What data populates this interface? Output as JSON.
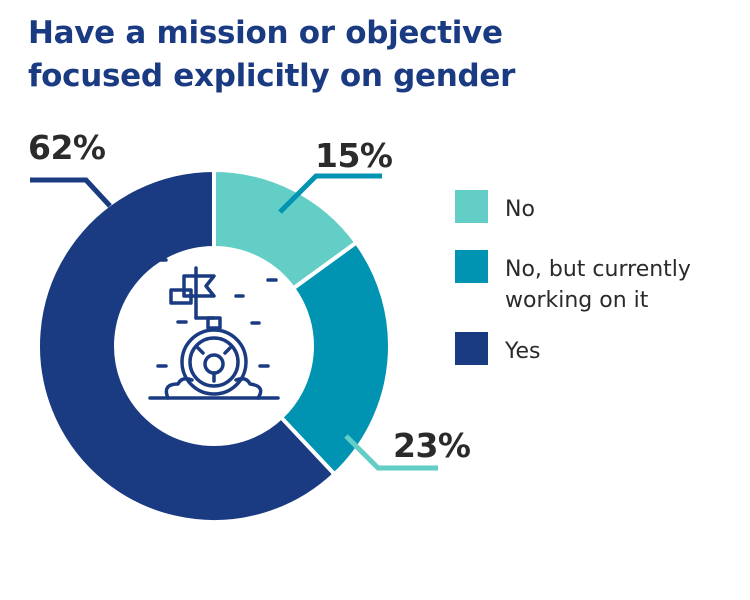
{
  "title_lines": [
    "Have a mission or objective",
    "focused explicitly on gender"
  ],
  "chart_data": {
    "type": "donut",
    "title": "Have a mission or objective focused explicitly on gender",
    "categories": [
      "No",
      "No, but currently working on it",
      "Yes"
    ],
    "values": [
      15,
      23,
      62
    ],
    "value_labels": [
      "15%",
      "23%",
      "62%"
    ],
    "colors": [
      "#62cec6",
      "#0093b2",
      "#1a3b82"
    ],
    "legend_position": "right",
    "center_icon": "flag-target-gender-icon"
  },
  "legend": [
    {
      "lines": [
        "No"
      ]
    },
    {
      "lines": [
        "No, but currently",
        "working on it"
      ]
    },
    {
      "lines": [
        "Yes"
      ]
    }
  ]
}
